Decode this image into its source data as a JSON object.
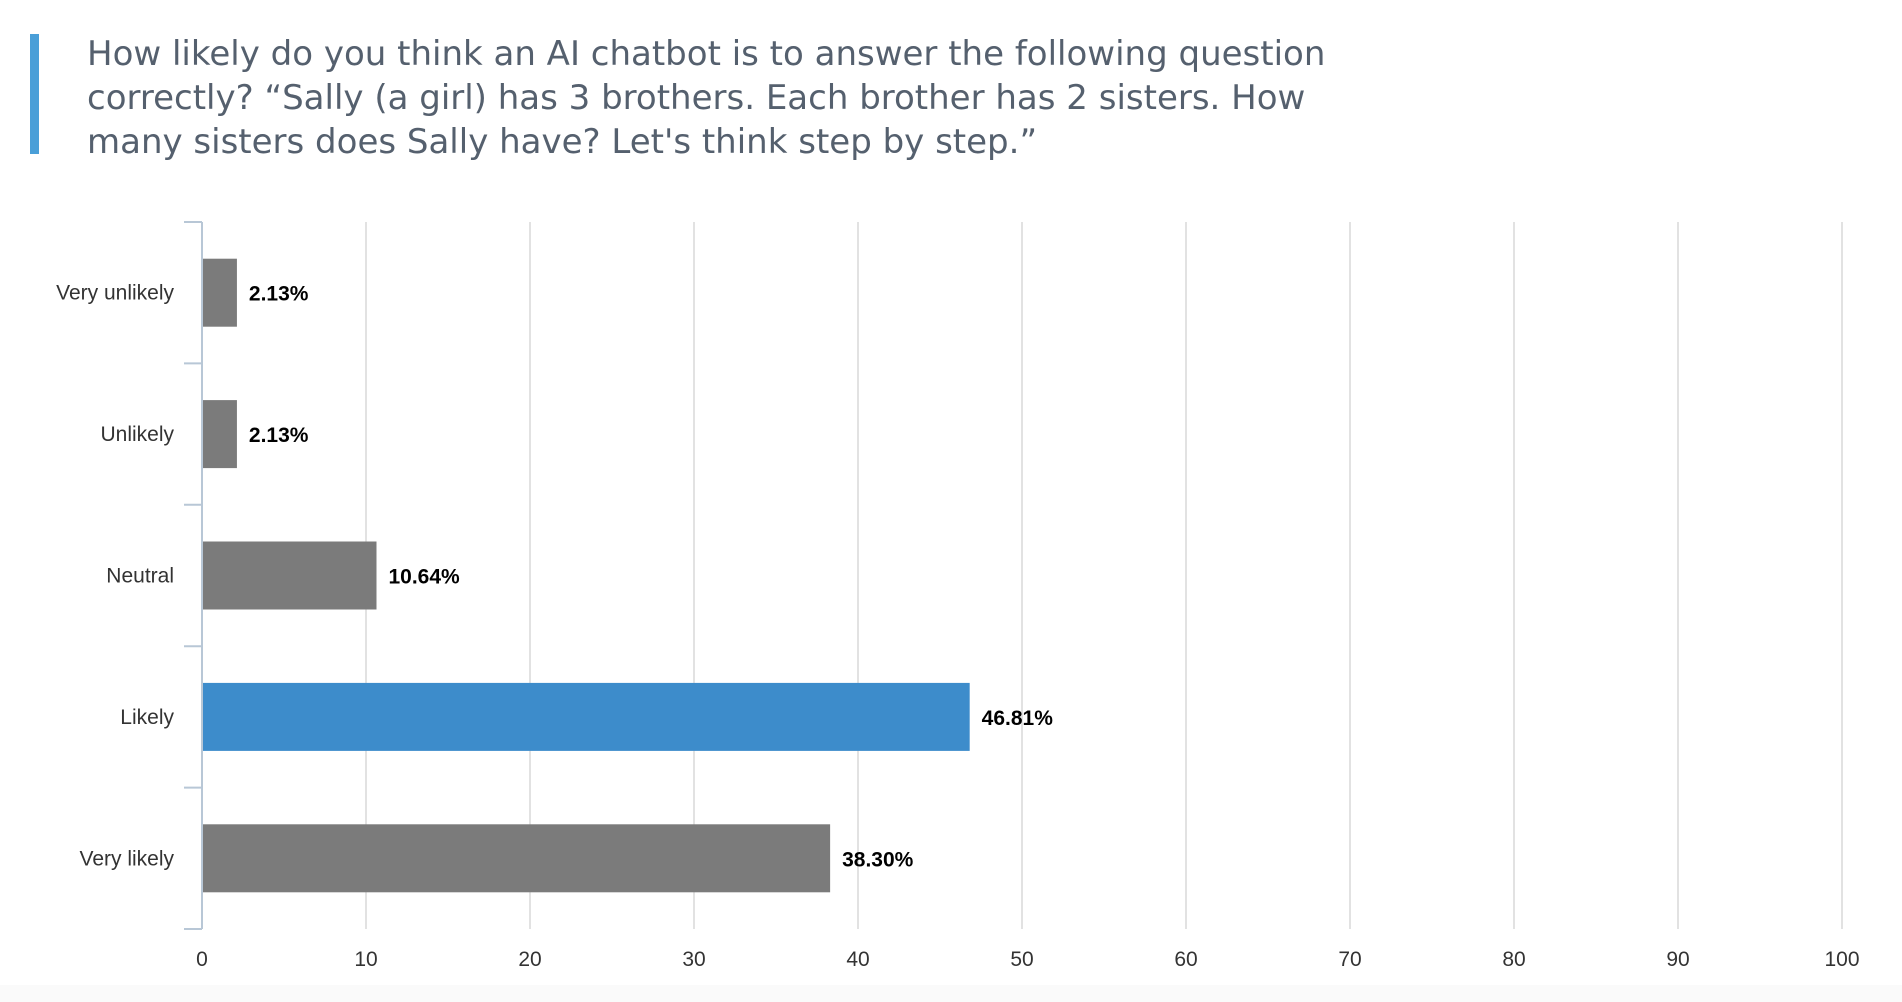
{
  "question": {
    "title": "How likely do you think an AI chatbot is to answer the following question correctly?  “Sally (a girl) has 3 brothers. Each brother has 2 sisters. How many sisters does Sally have? Let's think step by step.”"
  },
  "colors": {
    "accent": "#4a9fd8",
    "bar_default": "#7b7b7b",
    "bar_highlight": "#3d8ccb",
    "grid": "#d9d9d9",
    "axis": "#b8c7d6"
  },
  "chart_data": {
    "type": "bar",
    "orientation": "horizontal",
    "title": "How likely do you think an AI chatbot is to answer the following question correctly?  “Sally (a girl) has 3 brothers. Each brother has 2 sisters. How many sisters does Sally have? Let's think step by step.”",
    "categories": [
      "Very unlikely",
      "Unlikely",
      "Neutral",
      "Likely",
      "Very likely"
    ],
    "values": [
      2.13,
      2.13,
      10.64,
      46.81,
      38.3
    ],
    "data_labels": [
      "2.13%",
      "2.13%",
      "10.64%",
      "46.81%",
      "38.30%"
    ],
    "highlight_index": 3,
    "xlim": [
      0,
      100
    ],
    "xticks": [
      0,
      10,
      20,
      30,
      40,
      50,
      60,
      70,
      80,
      90,
      100
    ],
    "xlabel": "",
    "ylabel": "",
    "grid": true
  }
}
